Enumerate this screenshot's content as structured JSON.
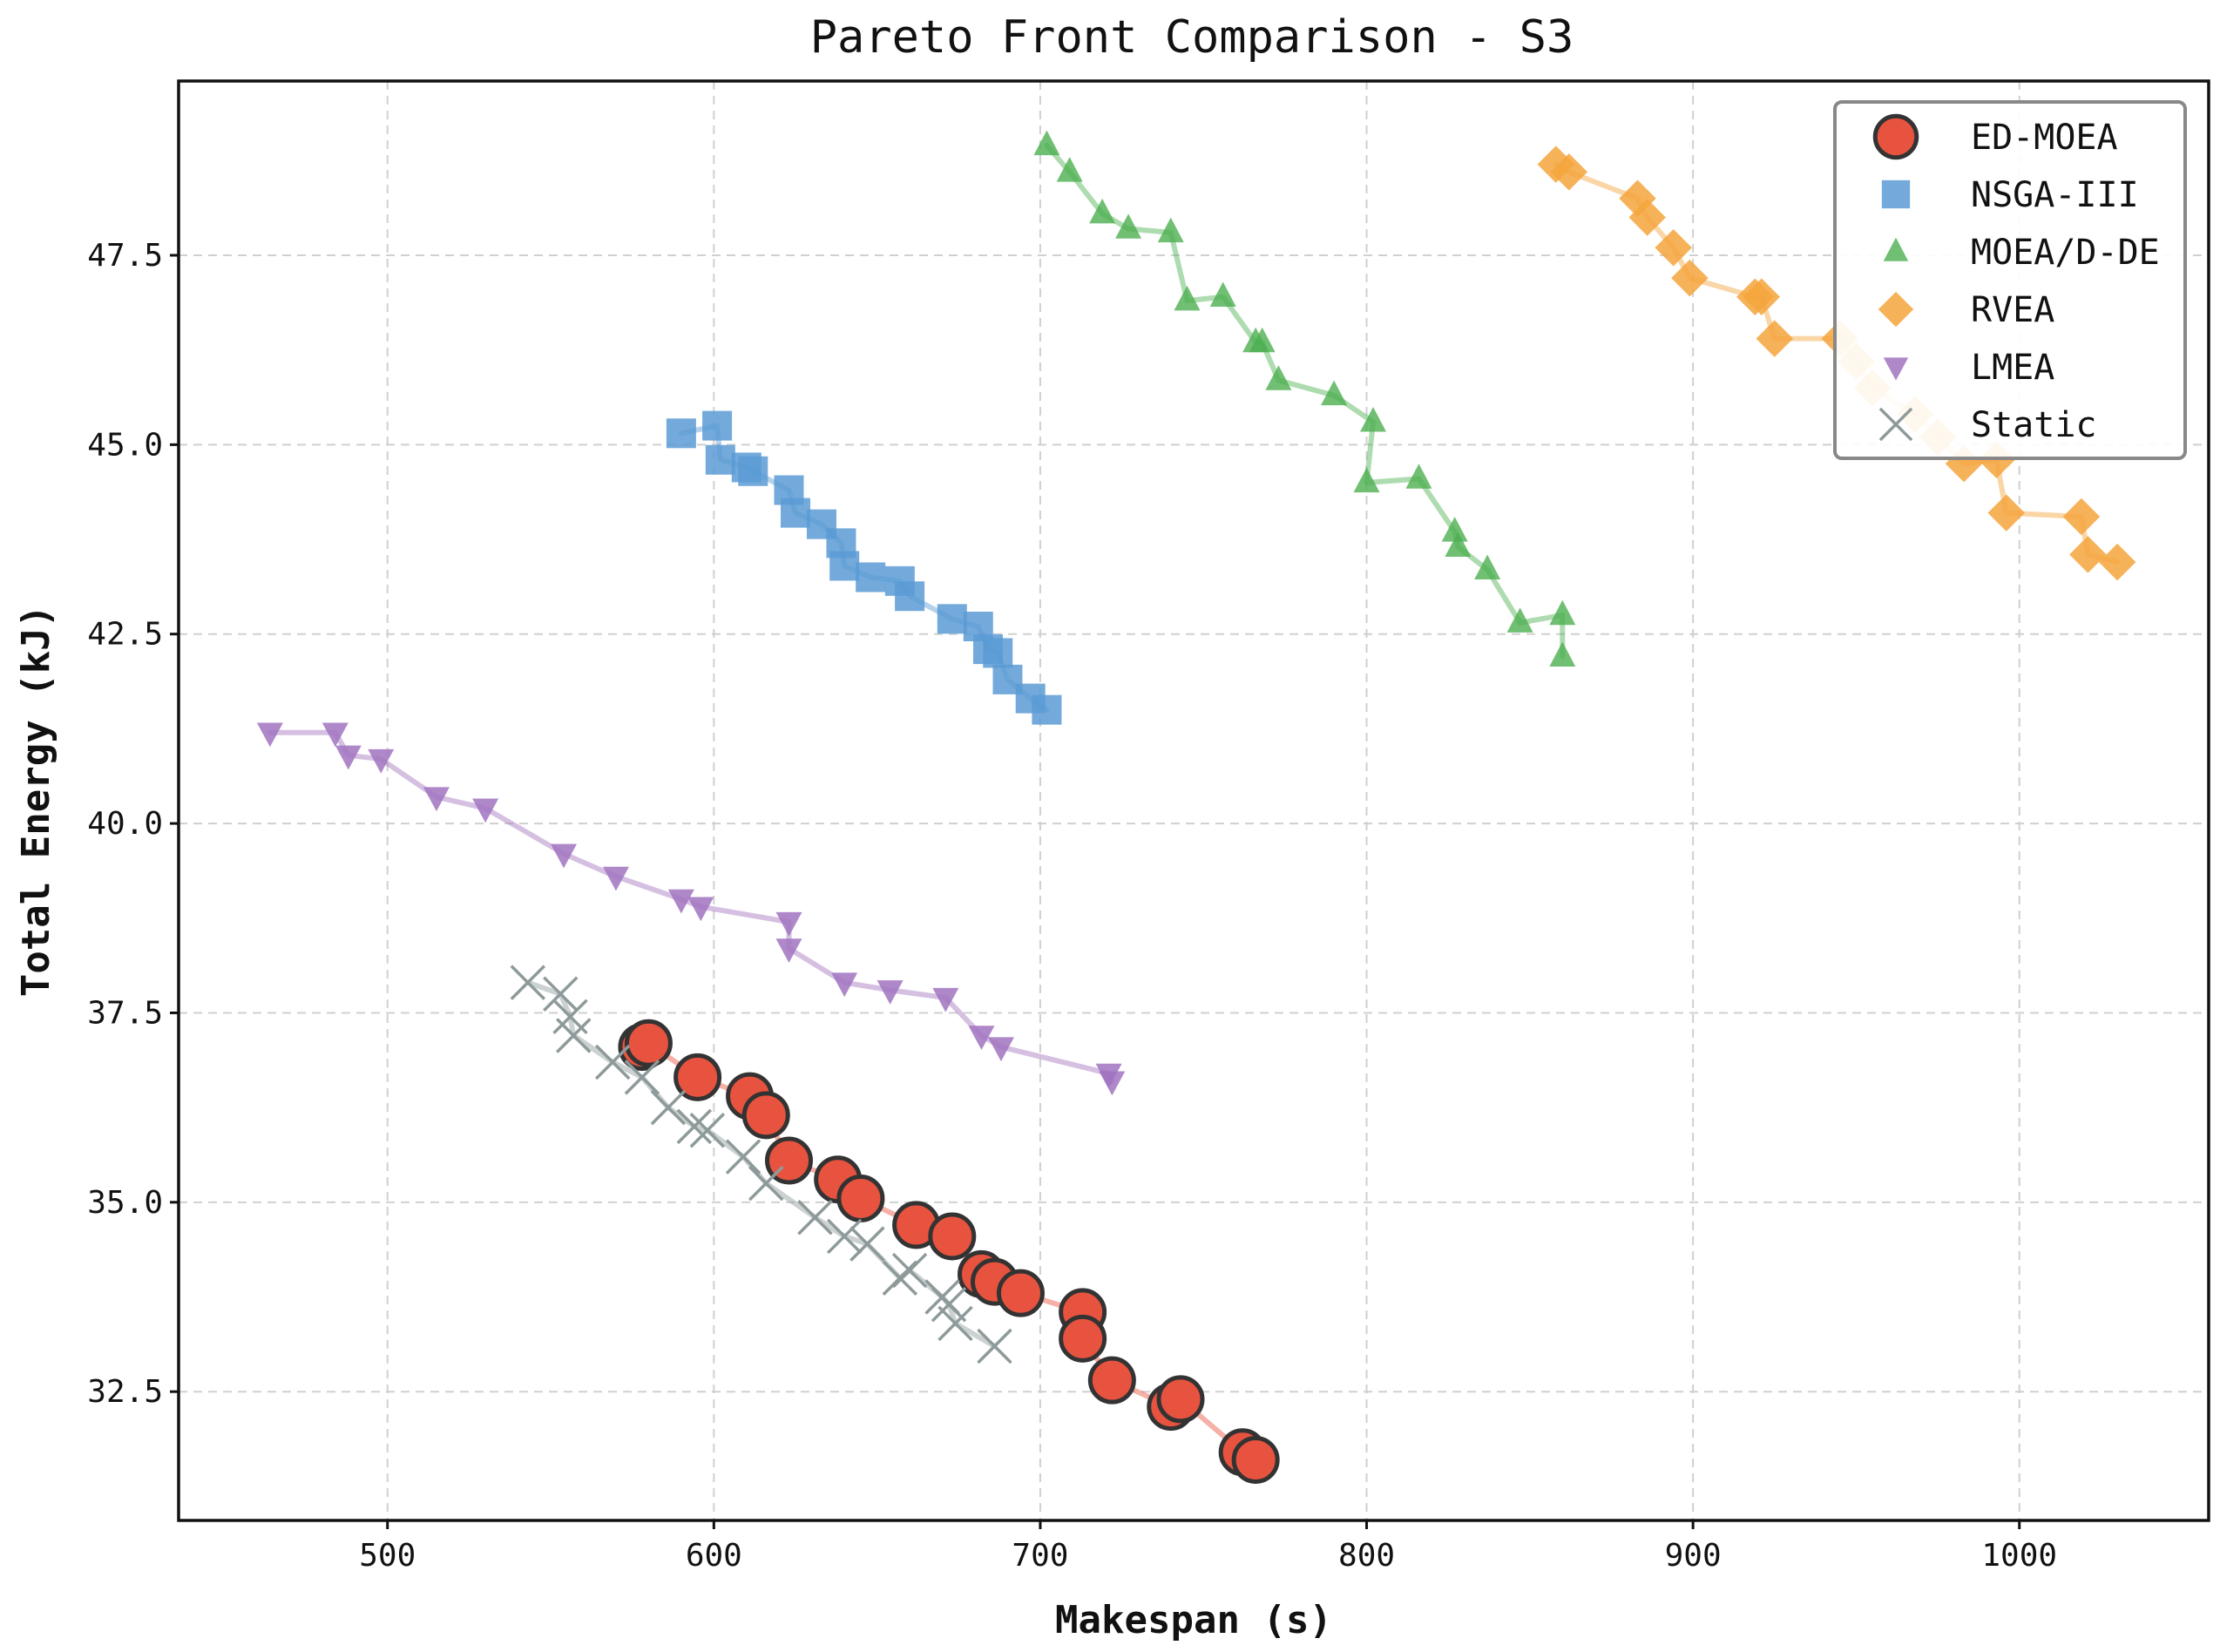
{
  "chart_data": {
    "type": "scatter",
    "title": "Pareto Front Comparison - S3",
    "xlabel": "Makespan (s)",
    "ylabel": "Total Energy (kJ)",
    "xlim": [
      436,
      1058
    ],
    "ylim": [
      30.8,
      49.8
    ],
    "xticks": [
      500,
      600,
      700,
      800,
      900,
      1000
    ],
    "yticks": [
      32.5,
      35.0,
      37.5,
      40.0,
      42.5,
      45.0,
      47.5
    ],
    "xtick_labels": [
      "500",
      "600",
      "700",
      "800",
      "900",
      "1000"
    ],
    "ytick_labels": [
      "32.5",
      "35.0",
      "37.5",
      "40.0",
      "42.5",
      "45.0",
      "47.5"
    ],
    "grid": true,
    "legend_position": "top-right",
    "series": [
      {
        "name": "ED-MOEA",
        "marker": "circle",
        "color": "#e8533f",
        "edge": "#333333",
        "x": [
          578,
          580,
          595,
          611,
          616,
          623,
          638,
          645,
          662,
          673,
          682,
          686,
          694,
          713,
          713,
          722,
          740,
          743,
          762,
          766
        ],
        "y": [
          37.05,
          37.1,
          36.65,
          36.4,
          36.15,
          35.55,
          35.3,
          35.05,
          34.7,
          34.55,
          34.05,
          33.95,
          33.8,
          33.55,
          33.2,
          32.65,
          32.3,
          32.4,
          31.7,
          31.6
        ]
      },
      {
        "name": "NSGA-III",
        "marker": "square",
        "color": "#5b9bd5",
        "x": [
          590,
          601,
          602,
          610,
          612,
          623,
          625,
          633,
          639,
          640,
          648,
          657,
          660,
          673,
          681,
          684,
          687,
          690,
          697,
          702
        ],
        "y": [
          45.15,
          45.25,
          44.8,
          44.7,
          44.65,
          44.4,
          44.1,
          43.95,
          43.7,
          43.4,
          43.25,
          43.2,
          43.0,
          42.7,
          42.6,
          42.3,
          42.25,
          41.9,
          41.65,
          41.5
        ]
      },
      {
        "name": "MOEA/D-DE",
        "marker": "triangle-up",
        "color": "#4caf50",
        "x": [
          702,
          709,
          719,
          727,
          740,
          745,
          756,
          766,
          768,
          773,
          790,
          802,
          800,
          816,
          827,
          828,
          837,
          847,
          860,
          860
        ],
        "y": [
          48.95,
          48.6,
          48.05,
          47.85,
          47.8,
          46.9,
          46.95,
          46.35,
          46.35,
          45.85,
          45.65,
          45.3,
          44.5,
          44.55,
          43.85,
          43.65,
          43.35,
          42.65,
          42.75,
          42.2
        ]
      },
      {
        "name": "RVEA",
        "marker": "diamond",
        "color": "#f5a43c",
        "x": [
          858,
          862,
          883,
          886,
          894,
          899,
          919,
          921,
          925,
          945,
          950,
          955,
          968,
          975,
          983,
          993,
          996,
          1019,
          1021,
          1030
        ],
        "y": [
          48.7,
          48.6,
          48.25,
          48.0,
          47.6,
          47.2,
          46.95,
          46.95,
          46.4,
          46.4,
          46.1,
          45.75,
          45.4,
          45.1,
          44.75,
          44.8,
          44.1,
          44.05,
          43.55,
          43.45
        ]
      },
      {
        "name": "LMEA",
        "marker": "triangle-down",
        "color": "#a173bf",
        "x": [
          464,
          484,
          488,
          498,
          515,
          530,
          554,
          570,
          590,
          596,
          623,
          623,
          640,
          654,
          671,
          682,
          688,
          721,
          722
        ],
        "y": [
          41.2,
          41.2,
          40.9,
          40.85,
          40.35,
          40.2,
          39.6,
          39.3,
          39.0,
          38.9,
          38.7,
          38.35,
          37.9,
          37.8,
          37.7,
          37.2,
          37.05,
          36.7,
          36.6
        ]
      },
      {
        "name": "Static",
        "marker": "x",
        "color": "#8e9a9a",
        "x": [
          543,
          553,
          556,
          557,
          569,
          578,
          586,
          594,
          598,
          609,
          616,
          631,
          640,
          647,
          657,
          660,
          670,
          672,
          674,
          686
        ],
        "y": [
          37.9,
          37.75,
          37.45,
          37.2,
          36.85,
          36.65,
          36.25,
          36.0,
          35.95,
          35.6,
          35.25,
          34.8,
          34.55,
          34.45,
          34.0,
          34.1,
          33.75,
          33.65,
          33.4,
          33.1
        ]
      }
    ]
  }
}
